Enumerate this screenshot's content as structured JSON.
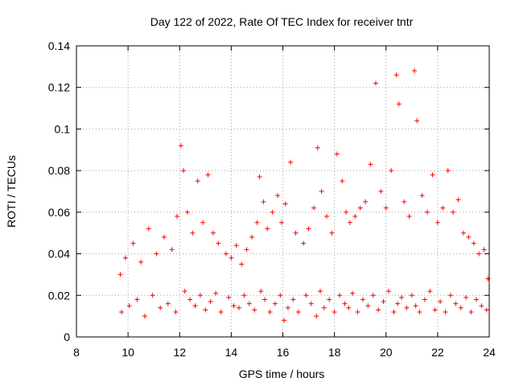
{
  "chart_data": {
    "type": "scatter",
    "title": "Day 122 of 2022, Rate Of TEC Index for receiver tntr",
    "xlabel": "GPS time / hours",
    "ylabel": "ROTI / TECUs",
    "xlim": [
      8,
      24
    ],
    "ylim": [
      0,
      0.14
    ],
    "x_ticks": [
      8,
      10,
      12,
      14,
      16,
      18,
      20,
      22,
      24
    ],
    "x_tick_labels": [
      "8",
      "10",
      "12",
      "14",
      "16",
      "18",
      "20",
      "22",
      "24"
    ],
    "y_ticks": [
      0,
      0.02,
      0.04,
      0.06,
      0.08,
      0.1,
      0.12,
      0.14
    ],
    "y_tick_labels": [
      "0",
      "0.02",
      "0.04",
      "0.06",
      "0.08",
      "0.1",
      "0.12",
      "0.14"
    ],
    "grid": true,
    "marker": "plus",
    "color": "#ff0000",
    "series": [
      {
        "name": "ROTI",
        "x": [
          9.7,
          9.9,
          10.2,
          10.5,
          10.8,
          11.1,
          11.4,
          11.7,
          11.9,
          12.05,
          12.15,
          12.3,
          12.5,
          12.7,
          12.9,
          13.1,
          13.3,
          13.5,
          13.8,
          14.0,
          14.2,
          14.4,
          14.6,
          14.8,
          15.0,
          15.1,
          15.25,
          15.4,
          15.6,
          15.8,
          15.95,
          16.1,
          16.3,
          16.5,
          16.8,
          17.0,
          17.2,
          17.35,
          17.5,
          17.7,
          17.9,
          18.1,
          18.3,
          18.45,
          18.6,
          18.8,
          19.0,
          19.2,
          19.4,
          19.6,
          19.8,
          20.0,
          20.2,
          20.4,
          20.5,
          20.7,
          20.9,
          21.1,
          21.2,
          21.4,
          21.6,
          21.8,
          22.0,
          22.2,
          22.4,
          22.6,
          22.8,
          23.0,
          23.2,
          23.4,
          23.6,
          23.8,
          23.95,
          9.75,
          10.05,
          10.35,
          10.65,
          10.95,
          11.25,
          11.55,
          11.85,
          12.2,
          12.4,
          12.6,
          12.8,
          13.0,
          13.2,
          13.4,
          13.6,
          13.9,
          14.1,
          14.3,
          14.5,
          14.7,
          14.9,
          15.15,
          15.3,
          15.5,
          15.7,
          15.9,
          16.05,
          16.2,
          16.4,
          16.6,
          16.9,
          17.1,
          17.3,
          17.45,
          17.6,
          17.8,
          18.0,
          18.2,
          18.4,
          18.55,
          18.7,
          18.9,
          19.1,
          19.3,
          19.5,
          19.7,
          19.9,
          20.1,
          20.3,
          20.45,
          20.6,
          20.8,
          21.0,
          21.15,
          21.3,
          21.5,
          21.7,
          21.9,
          22.1,
          22.3,
          22.5,
          22.7,
          22.9,
          23.1,
          23.3,
          23.5,
          23.7,
          23.9
        ],
        "y": [
          0.03,
          0.038,
          0.045,
          0.036,
          0.052,
          0.04,
          0.048,
          0.042,
          0.058,
          0.092,
          0.08,
          0.06,
          0.05,
          0.075,
          0.055,
          0.078,
          0.05,
          0.045,
          0.04,
          0.038,
          0.044,
          0.035,
          0.042,
          0.048,
          0.055,
          0.077,
          0.065,
          0.052,
          0.06,
          0.068,
          0.055,
          0.064,
          0.084,
          0.05,
          0.045,
          0.052,
          0.062,
          0.091,
          0.07,
          0.058,
          0.05,
          0.088,
          0.075,
          0.06,
          0.055,
          0.058,
          0.062,
          0.065,
          0.083,
          0.122,
          0.07,
          0.062,
          0.08,
          0.126,
          0.112,
          0.065,
          0.058,
          0.128,
          0.104,
          0.068,
          0.06,
          0.078,
          0.055,
          0.062,
          0.08,
          0.06,
          0.066,
          0.05,
          0.048,
          0.045,
          0.04,
          0.042,
          0.028,
          0.012,
          0.015,
          0.018,
          0.01,
          0.02,
          0.014,
          0.016,
          0.012,
          0.022,
          0.018,
          0.015,
          0.02,
          0.013,
          0.017,
          0.021,
          0.012,
          0.019,
          0.015,
          0.014,
          0.02,
          0.016,
          0.013,
          0.022,
          0.018,
          0.012,
          0.016,
          0.02,
          0.008,
          0.014,
          0.018,
          0.012,
          0.02,
          0.016,
          0.01,
          0.022,
          0.014,
          0.018,
          0.012,
          0.02,
          0.016,
          0.014,
          0.021,
          0.012,
          0.018,
          0.015,
          0.02,
          0.013,
          0.017,
          0.022,
          0.012,
          0.016,
          0.019,
          0.014,
          0.02,
          0.015,
          0.012,
          0.018,
          0.022,
          0.013,
          0.017,
          0.012,
          0.02,
          0.016,
          0.014,
          0.019,
          0.012,
          0.018,
          0.015,
          0.013
        ]
      }
    ]
  }
}
